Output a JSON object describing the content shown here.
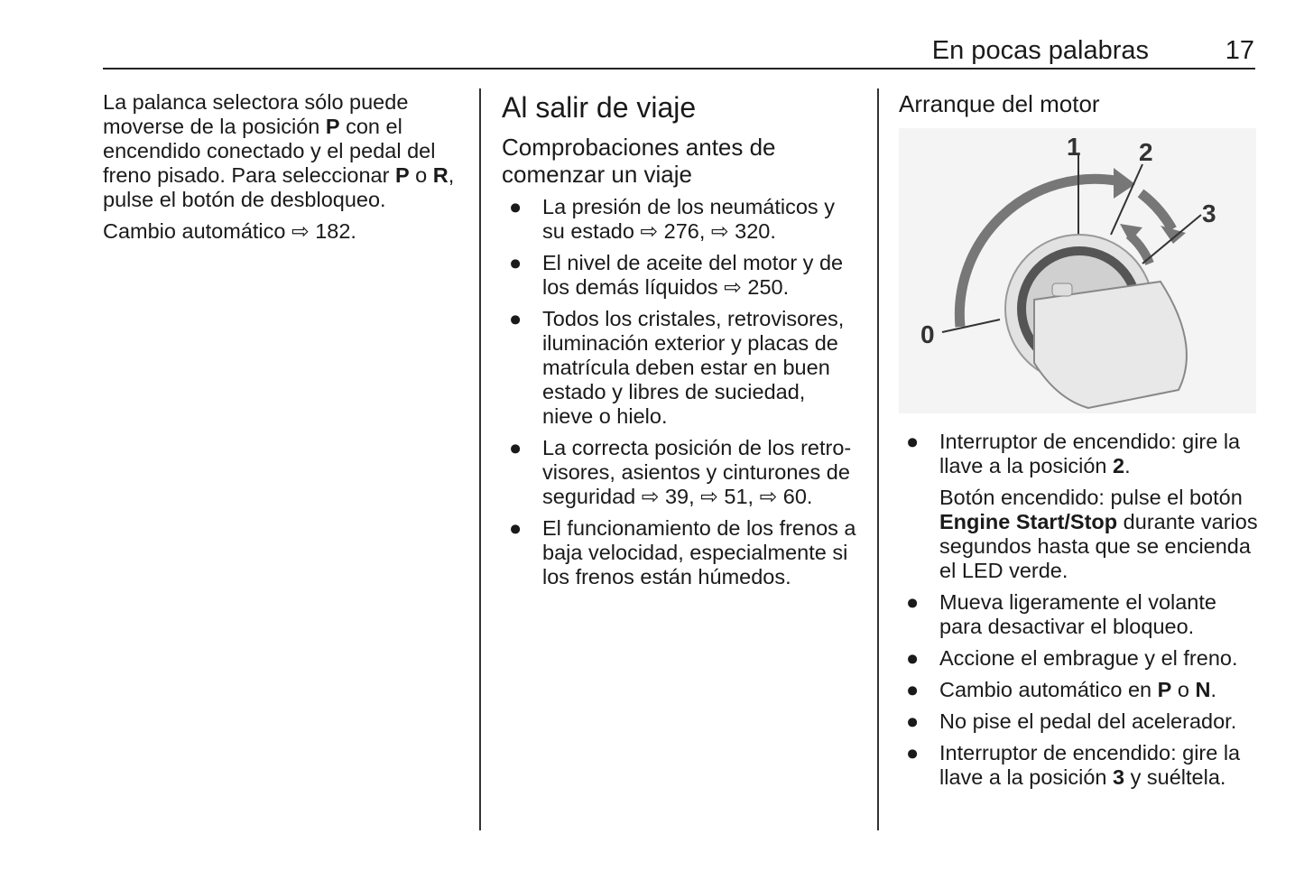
{
  "header": {
    "title": "En pocas palabras",
    "page_number": "17"
  },
  "col1": {
    "paragraphs": [
      [
        {
          "t": "La palanca selectora sólo puede moverse de la posición "
        },
        {
          "t": "P",
          "b": true
        },
        {
          "t": " con el encendido conectado y el pedal del freno pisado. Para seleccionar "
        },
        {
          "t": "P",
          "b": true
        },
        {
          "t": " o "
        },
        {
          "t": "R",
          "b": true
        },
        {
          "t": ", pulse el botón de desbloqueo."
        }
      ],
      [
        {
          "t": "Cambio automático ⇨ 182."
        }
      ]
    ]
  },
  "col2": {
    "heading": "Al salir de viaje",
    "subheading": "Comprobaciones antes de comenzar un viaje",
    "bullets": [
      [
        [
          {
            "t": "La presión de los neumáticos y su estado ⇨ 276, ⇨ 320."
          }
        ]
      ],
      [
        [
          {
            "t": "El nivel de aceite del motor y de los demás líquidos ⇨ 250."
          }
        ]
      ],
      [
        [
          {
            "t": "Todos los cristales, retrovisores, iluminación exterior y placas de matrícula deben estar en buen estado y libres de suciedad, nieve o hielo."
          }
        ]
      ],
      [
        [
          {
            "t": "La correcta posición de los retro-visores, asientos y cinturones de seguridad ⇨ 39, ⇨ 51, ⇨ 60."
          }
        ]
      ],
      [
        [
          {
            "t": "El funcionamiento de los frenos a baja velocidad, especialmente si los frenos están húmedos."
          }
        ]
      ]
    ]
  },
  "col3": {
    "heading": "Arranque del motor",
    "figure_labels": {
      "pos0": "0",
      "pos1": "1",
      "pos2": "2",
      "pos3": "3"
    },
    "bullets": [
      [
        [
          {
            "t": "Interruptor de encendido: gire la llave a la posición "
          },
          {
            "t": "2",
            "b": true
          },
          {
            "t": "."
          }
        ],
        [
          {
            "t": "Botón encendido: pulse el botón "
          },
          {
            "t": "Engine Start/Stop",
            "b": true
          },
          {
            "t": " durante varios segundos hasta que se encienda el LED verde."
          }
        ]
      ],
      [
        [
          {
            "t": "Mueva ligeramente el volante para desactivar el bloqueo."
          }
        ]
      ],
      [
        [
          {
            "t": "Accione el embrague y el freno."
          }
        ]
      ],
      [
        [
          {
            "t": "Cambio automático en "
          },
          {
            "t": "P",
            "b": true
          },
          {
            "t": " o "
          },
          {
            "t": "N",
            "b": true
          },
          {
            "t": "."
          }
        ]
      ],
      [
        [
          {
            "t": "No pise el pedal del acelerador."
          }
        ]
      ],
      [
        [
          {
            "t": "Interruptor de encendido: gire la llave a la posición "
          },
          {
            "t": "3",
            "b": true
          },
          {
            "t": " y suéltela."
          }
        ]
      ]
    ],
    "bullet_glyph": "●"
  }
}
